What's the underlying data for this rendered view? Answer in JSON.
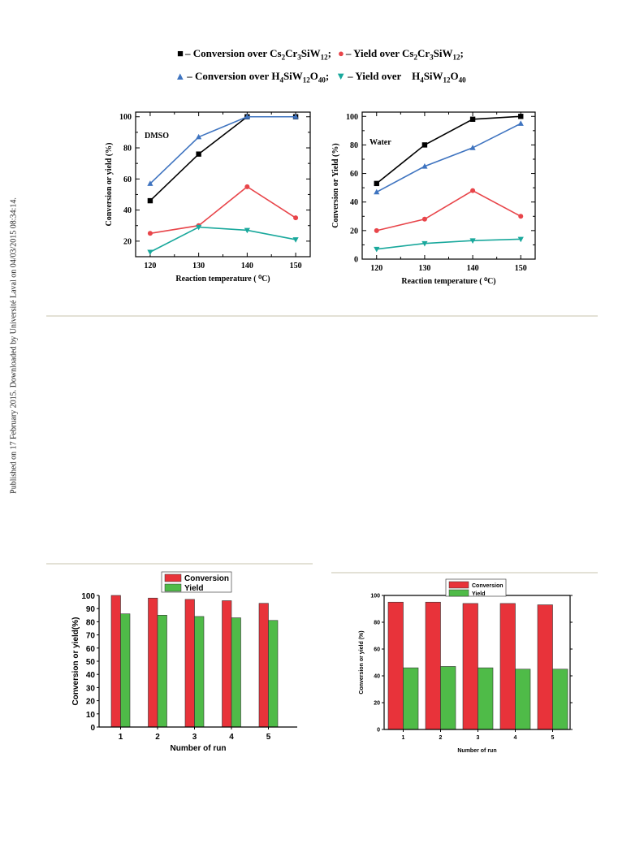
{
  "side_note": "Published on 17 February 2015. Downloaded by Université Laval on 04/03/2015 08:34:14.",
  "legend": {
    "line1": [
      {
        "marker": "■",
        "color": "#000000",
        "prefix": "– Conversion over ",
        "formula": [
          [
            "Cs",
            ""
          ],
          [
            "2",
            true
          ],
          [
            "Cr",
            ""
          ],
          [
            "3",
            true
          ],
          [
            "SiW",
            ""
          ],
          [
            "12",
            true
          ]
        ],
        "suffix": ";"
      },
      {
        "marker": "●",
        "color": "#e8454a",
        "prefix": "– Yield over ",
        "formula": [
          [
            "Cs",
            ""
          ],
          [
            "2",
            true
          ],
          [
            "Cr",
            ""
          ],
          [
            "3",
            true
          ],
          [
            "SiW",
            ""
          ],
          [
            "12",
            true
          ]
        ],
        "suffix": ";"
      }
    ],
    "line2": [
      {
        "marker": "▲",
        "color": "#3f74c0",
        "prefix": "– Conversion over ",
        "formula": [
          [
            "H",
            ""
          ],
          [
            "4",
            true
          ],
          [
            "SiW",
            ""
          ],
          [
            "12",
            true
          ],
          [
            "O",
            ""
          ],
          [
            "40",
            true
          ]
        ],
        "suffix": ";"
      },
      {
        "marker": "▼",
        "color": "#19a89c",
        "prefix": "– Yield over    ",
        "formula": [
          [
            "H",
            ""
          ],
          [
            "4",
            true
          ],
          [
            "SiW",
            ""
          ],
          [
            "12",
            true
          ],
          [
            "O",
            ""
          ],
          [
            "40",
            true
          ]
        ],
        "suffix": ""
      }
    ]
  },
  "chart_data": [
    {
      "type": "line",
      "annotation": "DMSO",
      "x": [
        120,
        130,
        140,
        150
      ],
      "xlabel": "Reaction temperature ( ⁰C)",
      "ylabel": "Conversion or yield  (%)",
      "xlim": [
        117,
        153
      ],
      "ylim": [
        10,
        103
      ],
      "yticks": [
        20,
        40,
        60,
        80,
        100
      ],
      "series": [
        {
          "marker": "square",
          "color": "#000000",
          "values": [
            46,
            76,
            100,
            100
          ]
        },
        {
          "marker": "circle",
          "color": "#e8454a",
          "values": [
            25,
            30,
            55,
            35
          ]
        },
        {
          "marker": "triangle-up",
          "color": "#3f74c0",
          "values": [
            57,
            87,
            100,
            100
          ]
        },
        {
          "marker": "triangle-down",
          "color": "#19a89c",
          "values": [
            13,
            29,
            27,
            21
          ]
        }
      ]
    },
    {
      "type": "line",
      "annotation": "Water",
      "x": [
        120,
        130,
        140,
        150
      ],
      "xlabel": "Reaction temperature ( ⁰C)",
      "ylabel": "Conversion or Yield (%)",
      "xlim": [
        117,
        153
      ],
      "ylim": [
        0,
        103
      ],
      "yticks": [
        0,
        20,
        40,
        60,
        80,
        100
      ],
      "series": [
        {
          "marker": "square",
          "color": "#000000",
          "values": [
            53,
            80,
            98,
            100
          ]
        },
        {
          "marker": "circle",
          "color": "#e8454a",
          "values": [
            20,
            28,
            48,
            30
          ]
        },
        {
          "marker": "triangle-up",
          "color": "#3f74c0",
          "values": [
            47,
            65,
            78,
            95
          ]
        },
        {
          "marker": "triangle-down",
          "color": "#19a89c",
          "values": [
            7,
            11,
            13,
            14
          ]
        }
      ]
    },
    {
      "type": "bar",
      "categories": [
        "1",
        "2",
        "3",
        "4",
        "5"
      ],
      "xlabel": "Number of run",
      "ylabel": "Conversion or yield(%)",
      "ylim": [
        0,
        100
      ],
      "yticks": [
        0,
        10,
        20,
        30,
        40,
        50,
        60,
        70,
        80,
        90,
        100
      ],
      "legend": "top-center",
      "series": [
        {
          "name": "Conversion",
          "color": "#e8333a",
          "values": [
            100,
            98,
            97,
            96,
            94
          ]
        },
        {
          "name": "Yield",
          "color": "#4fbb48",
          "values": [
            86,
            85,
            84,
            83,
            81
          ]
        }
      ]
    },
    {
      "type": "bar",
      "categories": [
        "1",
        "2",
        "3",
        "4",
        "5"
      ],
      "xlabel": "Number of run",
      "ylabel": "Conversion or yield (%)",
      "ylim": [
        0,
        100
      ],
      "yticks": [
        0,
        20,
        40,
        60,
        80,
        100
      ],
      "legend": "top-center",
      "series": [
        {
          "name": "Conversion",
          "color": "#e8333a",
          "values": [
            95,
            95,
            94,
            94,
            93
          ]
        },
        {
          "name": "Yield",
          "color": "#4fbb48",
          "values": [
            46,
            47,
            46,
            45,
            45
          ]
        }
      ]
    }
  ]
}
